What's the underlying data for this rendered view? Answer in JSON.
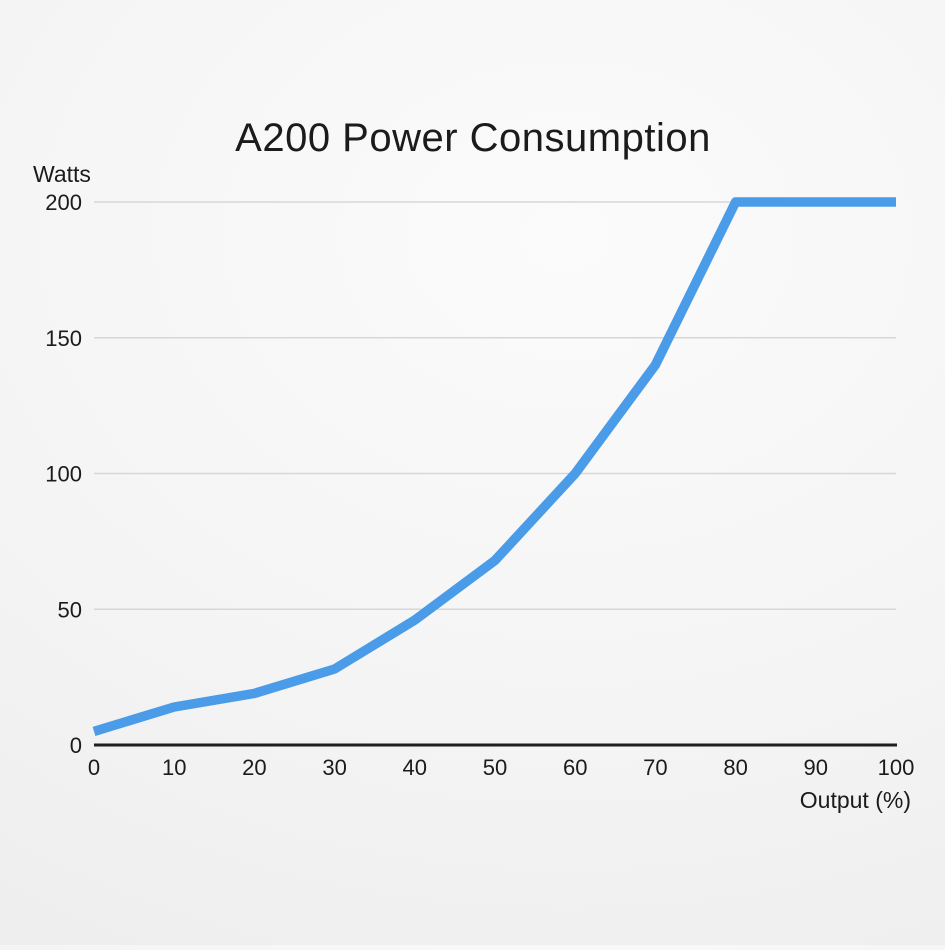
{
  "chart_data": {
    "type": "line",
    "title": "A200 Power Consumption",
    "xlabel": "Output (%)",
    "ylabel": "Watts",
    "x": [
      0,
      10,
      20,
      30,
      40,
      50,
      60,
      70,
      80,
      90,
      100
    ],
    "series": [
      {
        "name": "Power consumption (Watts)",
        "values": [
          5,
          14,
          19,
          28,
          46,
          68,
          100,
          140,
          200,
          200,
          200
        ]
      }
    ],
    "xlim": [
      0,
      100
    ],
    "ylim": [
      0,
      200
    ],
    "xticks": [
      0,
      10,
      20,
      30,
      40,
      50,
      60,
      70,
      80,
      90,
      100
    ],
    "yticks": [
      0,
      50,
      100,
      150,
      200
    ],
    "grid": "horizontal",
    "legend": "none",
    "line_color": "#4A9CE8",
    "grid_color": "#d7d7d7",
    "axis_color": "#1f1f1f",
    "text_color": "#1b1b1b"
  }
}
